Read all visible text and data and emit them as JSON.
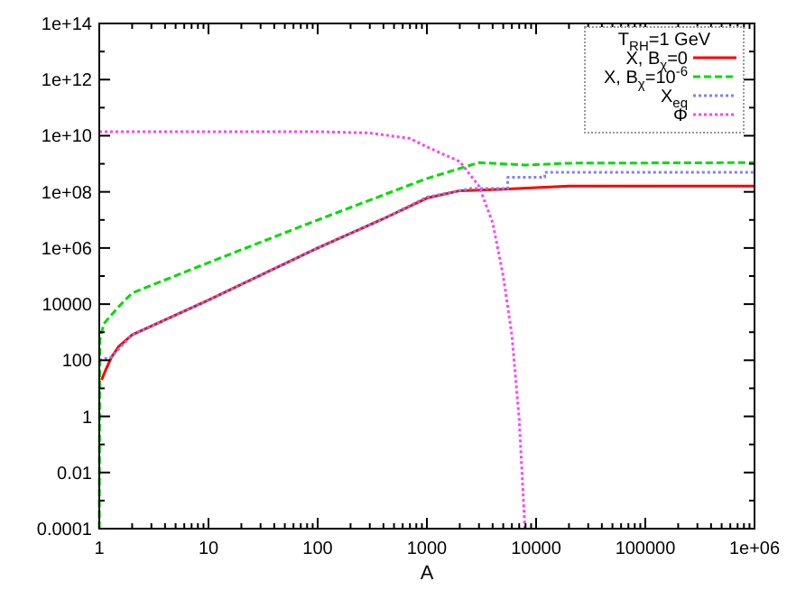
{
  "chart_data": {
    "type": "line",
    "xlabel": "A",
    "log": "xy",
    "legend": "top right",
    "legend_title": "T$_{RH}$=1 GeV",
    "grid": false,
    "xlim": [
      1,
      1000000
    ],
    "ylim": [
      0.0001,
      100000000000000.0
    ],
    "xticks": [
      1,
      {
        "value": 2,
        "label": null
      },
      {
        "value": 3,
        "label": null
      },
      {
        "value": 4,
        "label": null
      },
      {
        "value": 5,
        "label": null
      },
      {
        "value": 6,
        "label": null
      },
      {
        "value": 7,
        "label": null
      },
      {
        "value": 8,
        "label": null
      },
      {
        "value": 9,
        "label": null
      },
      10,
      {
        "value": 20,
        "label": null
      },
      {
        "value": 30,
        "label": null
      },
      {
        "value": 40,
        "label": null
      },
      {
        "value": 50,
        "label": null
      },
      {
        "value": 60,
        "label": null
      },
      {
        "value": 70,
        "label": null
      },
      {
        "value": 80,
        "label": null
      },
      {
        "value": 90,
        "label": null
      },
      100,
      {
        "value": 200,
        "label": null
      },
      {
        "value": 300,
        "label": null
      },
      {
        "value": 400,
        "label": null
      },
      {
        "value": 500,
        "label": null
      },
      {
        "value": 600,
        "label": null
      },
      {
        "value": 700,
        "label": null
      },
      {
        "value": 800,
        "label": null
      },
      {
        "value": 900,
        "label": null
      },
      1000,
      {
        "value": 2000,
        "label": null
      },
      {
        "value": 3000,
        "label": null
      },
      {
        "value": 4000,
        "label": null
      },
      {
        "value": 5000,
        "label": null
      },
      {
        "value": 6000,
        "label": null
      },
      {
        "value": 7000,
        "label": null
      },
      {
        "value": 8000,
        "label": null
      },
      {
        "value": 9000,
        "label": null
      },
      10000,
      {
        "value": 20000,
        "label": null
      },
      {
        "value": 30000,
        "label": null
      },
      {
        "value": 40000,
        "label": null
      },
      {
        "value": 50000,
        "label": null
      },
      {
        "value": 60000,
        "label": null
      },
      {
        "value": 70000,
        "label": null
      },
      {
        "value": 80000,
        "label": null
      },
      {
        "value": 90000,
        "label": null
      },
      100000,
      {
        "value": 200000,
        "label": null
      },
      {
        "value": 300000,
        "label": null
      },
      {
        "value": 400000,
        "label": null
      },
      {
        "value": 500000,
        "label": null
      },
      {
        "value": 600000,
        "label": null
      },
      {
        "value": 700000,
        "label": null
      },
      {
        "value": 800000,
        "label": null
      },
      {
        "value": 900000,
        "label": null
      },
      {
        "value": 1000000,
        "label": "1e+06"
      }
    ],
    "yticks": [
      0.0001,
      {
        "value": 0.001,
        "label": null
      },
      0.01,
      {
        "value": 0.1,
        "label": null
      },
      1,
      {
        "value": 10,
        "label": null
      },
      100,
      {
        "value": 1000,
        "label": null
      },
      10000,
      {
        "value": 100000,
        "label": null
      },
      {
        "value": 1000000,
        "label": "1e+06"
      },
      {
        "value": 10000000,
        "label": null
      },
      {
        "value": 100000000,
        "label": "1e+08"
      },
      {
        "value": 1000000000,
        "label": null
      },
      {
        "value": 10000000000,
        "label": "1e+10"
      },
      {
        "value": 100000000000,
        "label": null
      },
      {
        "value": 1000000000000,
        "label": "1e+12"
      },
      {
        "value": 10000000000000,
        "label": null
      },
      {
        "value": 100000000000000,
        "label": "1e+14"
      }
    ],
    "series": [
      {
        "name": "X, B$_{χ}$=0",
        "color": "#ff0000",
        "line_style": "solid",
        "x": [
          1.05,
          1.13,
          1.29,
          1.5,
          2,
          10,
          100,
          400,
          1000,
          2000,
          5000,
          20000,
          1000000
        ],
        "values": [
          20,
          40,
          126,
          300,
          800,
          14000,
          1000000,
          11000000,
          60000000,
          110000000,
          125000000,
          160000000,
          160000000
        ]
      },
      {
        "name": "X, B$_{χ}$=10$^{-6}$",
        "color": "#00dd00",
        "line_style": "dashed",
        "x": [
          1,
          1.01,
          1.1,
          1.5,
          2,
          10,
          100,
          1000,
          3000,
          8000,
          20000,
          1000000
        ],
        "values": [
          0.0001,
          500,
          2000,
          8000,
          25000,
          300000,
          10000000,
          300000000,
          1100000000,
          900000000,
          1050000000,
          1100000000
        ]
      },
      {
        "name": "X$_{eq}$",
        "color": "#8080ff",
        "line_style": "dotted",
        "x": [
          1,
          1.29,
          2,
          10,
          100,
          400,
          1000,
          2500,
          5500,
          5500,
          12000,
          12000,
          1000000
        ],
        "values": [
          100,
          130,
          800,
          14000,
          1000000,
          11000000,
          65000000,
          130000000,
          130000000,
          330000000,
          330000000,
          500000000,
          500000000
        ]
      },
      {
        "name": "Φ",
        "color": "#ff40ff",
        "line_style": "dotted",
        "x": [
          1,
          100,
          300,
          700,
          1000,
          2000,
          3000,
          4000,
          5000,
          6000,
          7000,
          7900
        ],
        "values": [
          14000000000,
          14000000000,
          12500000000,
          8000000000,
          4000000000,
          1200000000,
          160000000,
          8000000,
          100000,
          800,
          0.8,
          0.0001
        ]
      }
    ]
  }
}
